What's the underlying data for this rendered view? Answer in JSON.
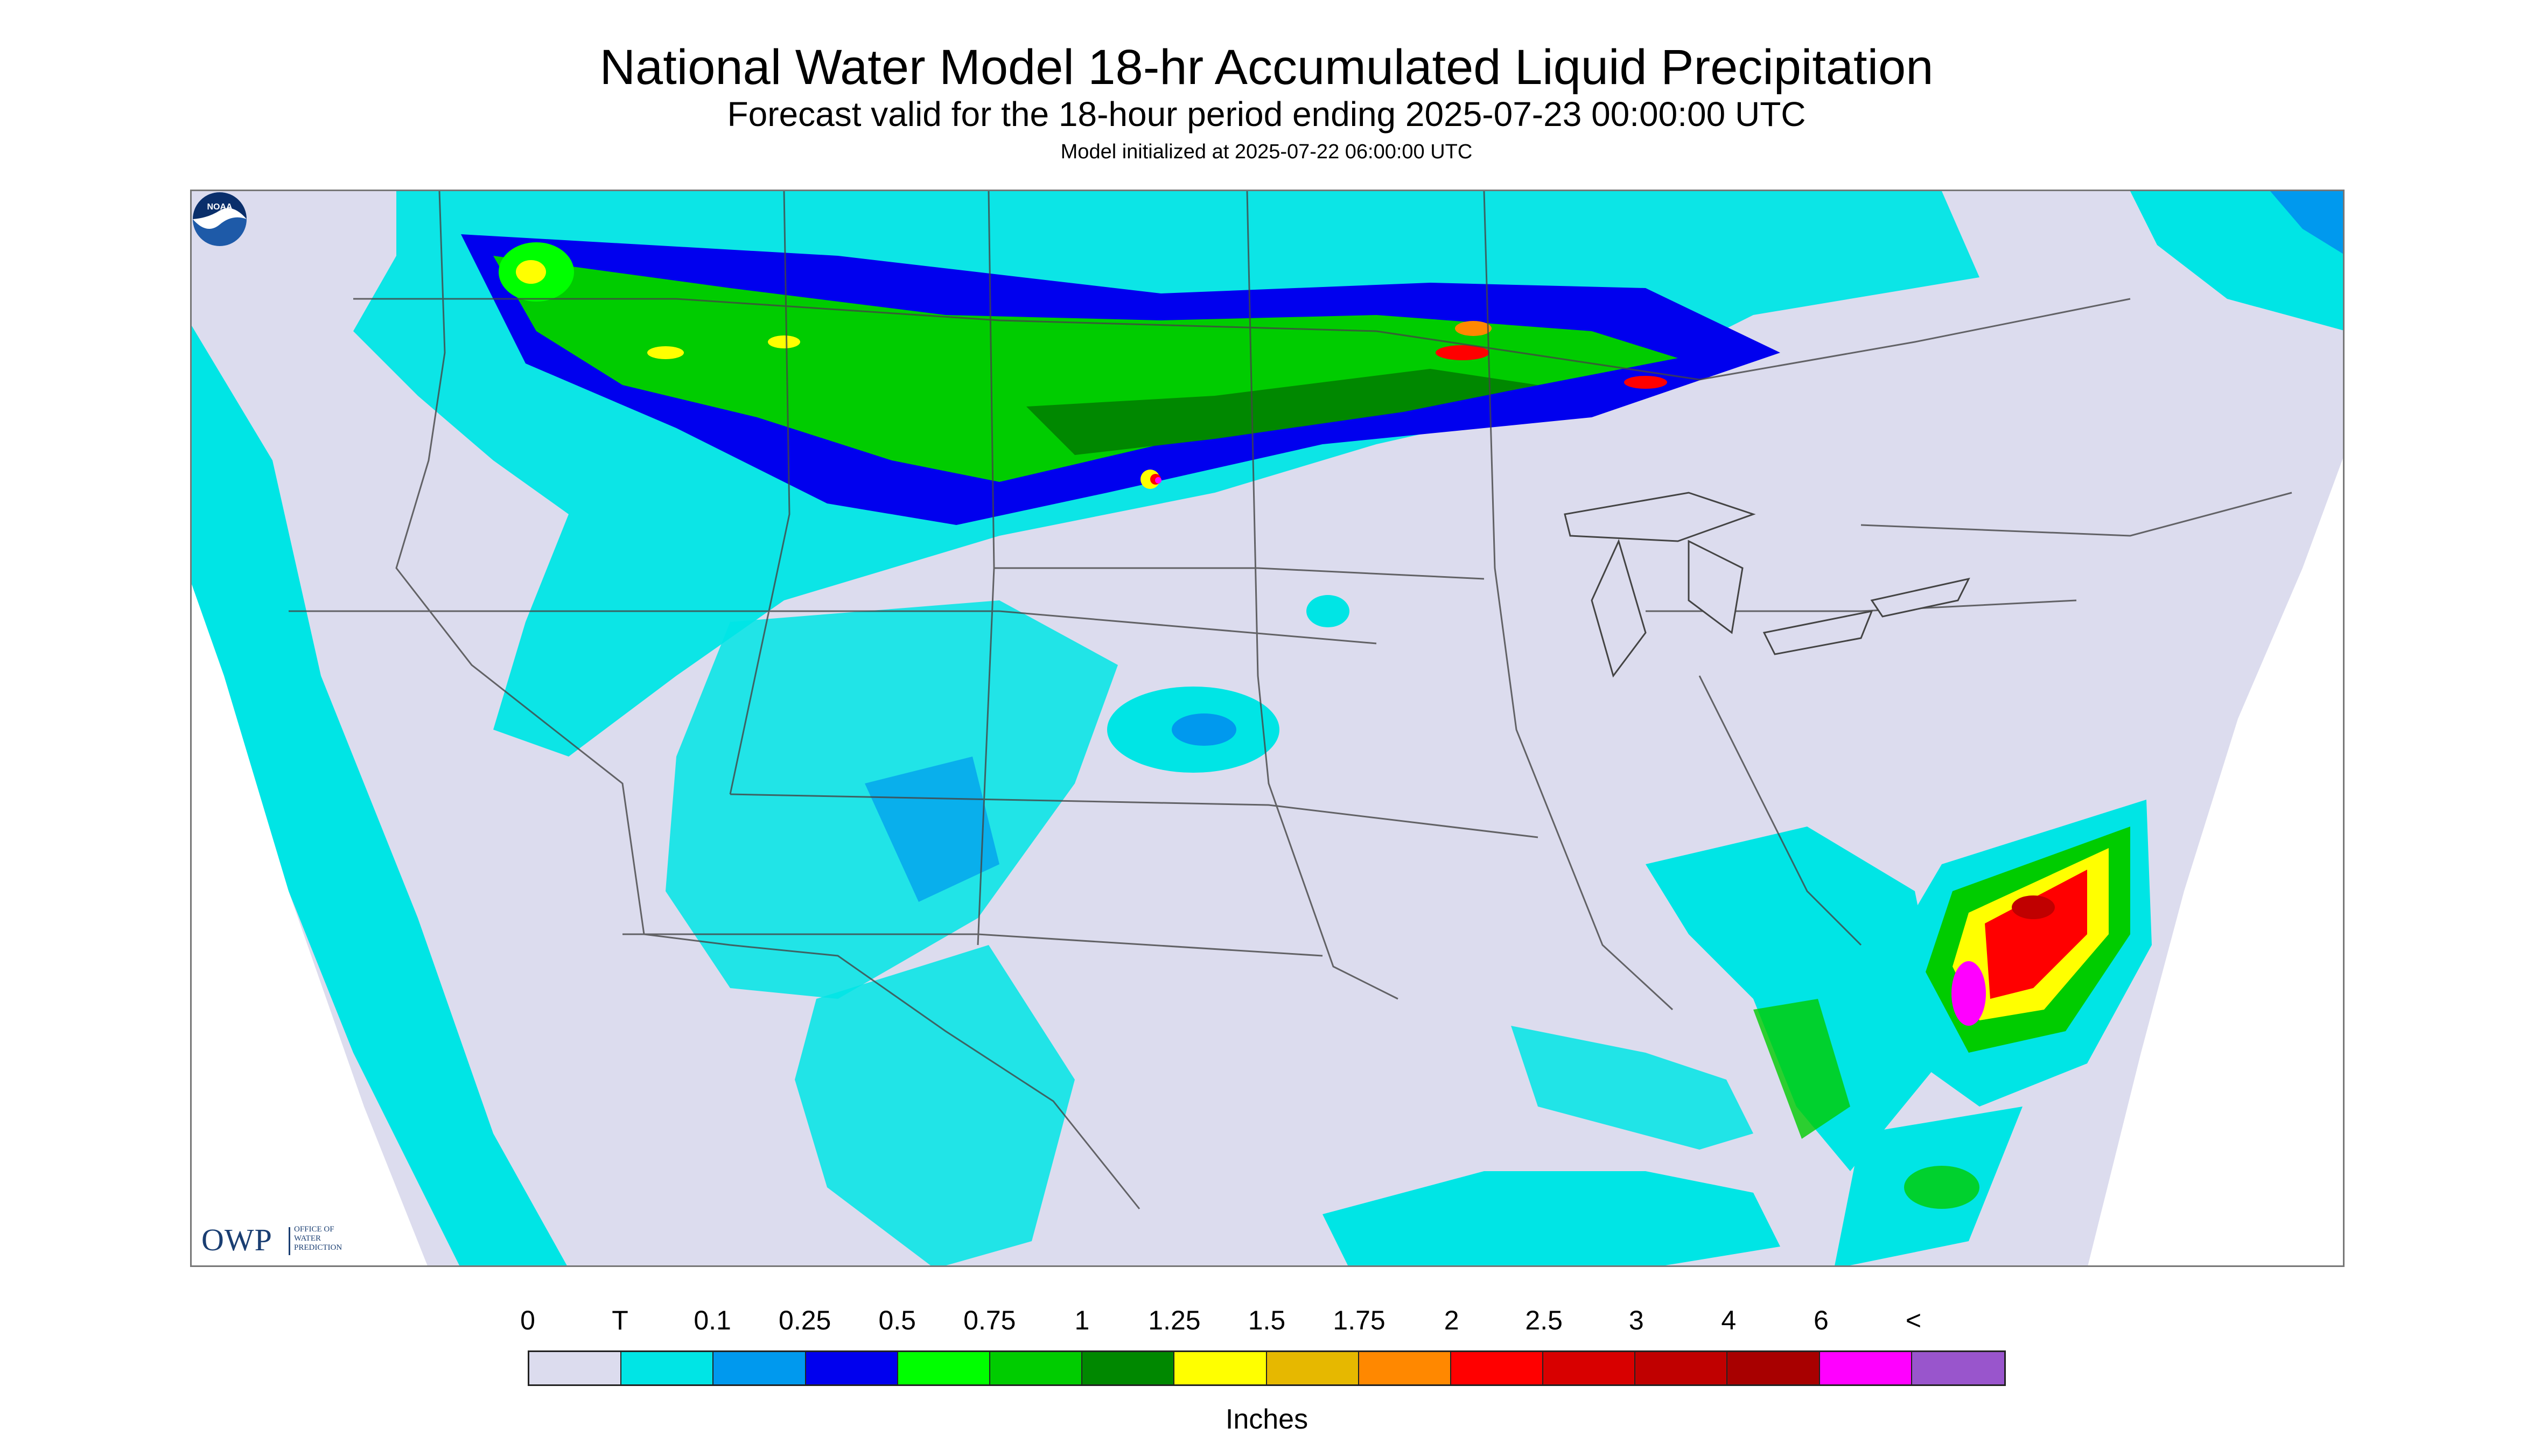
{
  "title": "National Water Model 18-hr Accumulated Liquid Precipitation",
  "subtitle": "Forecast valid for the 18-hour period ending 2025-07-23 00:00:00 UTC",
  "init": "Model initialized at 2025-07-22 06:00:00 UTC",
  "logo": {
    "owp_mark": "OWP",
    "owp_text_1": "OFFICE OF",
    "owp_text_2": "WATER",
    "owp_text_3": "PREDICTION",
    "noaa_text": "NOAA"
  },
  "legend": {
    "units": "Inches",
    "ticks": [
      "0",
      "T",
      "0.1",
      "0.25",
      "0.5",
      "0.75",
      "1",
      "1.25",
      "1.5",
      "1.75",
      "2",
      "2.5",
      "3",
      "4",
      "6",
      "<"
    ],
    "colors": [
      "#dcdcee",
      "#00e5e5",
      "#0099ee",
      "#0000ee",
      "#00ff00",
      "#00cc00",
      "#008800",
      "#ffff00",
      "#e6b800",
      "#ff8800",
      "#ff0000",
      "#d80000",
      "#c00000",
      "#a80000",
      "#ff00ff",
      "#9955cc"
    ]
  }
}
